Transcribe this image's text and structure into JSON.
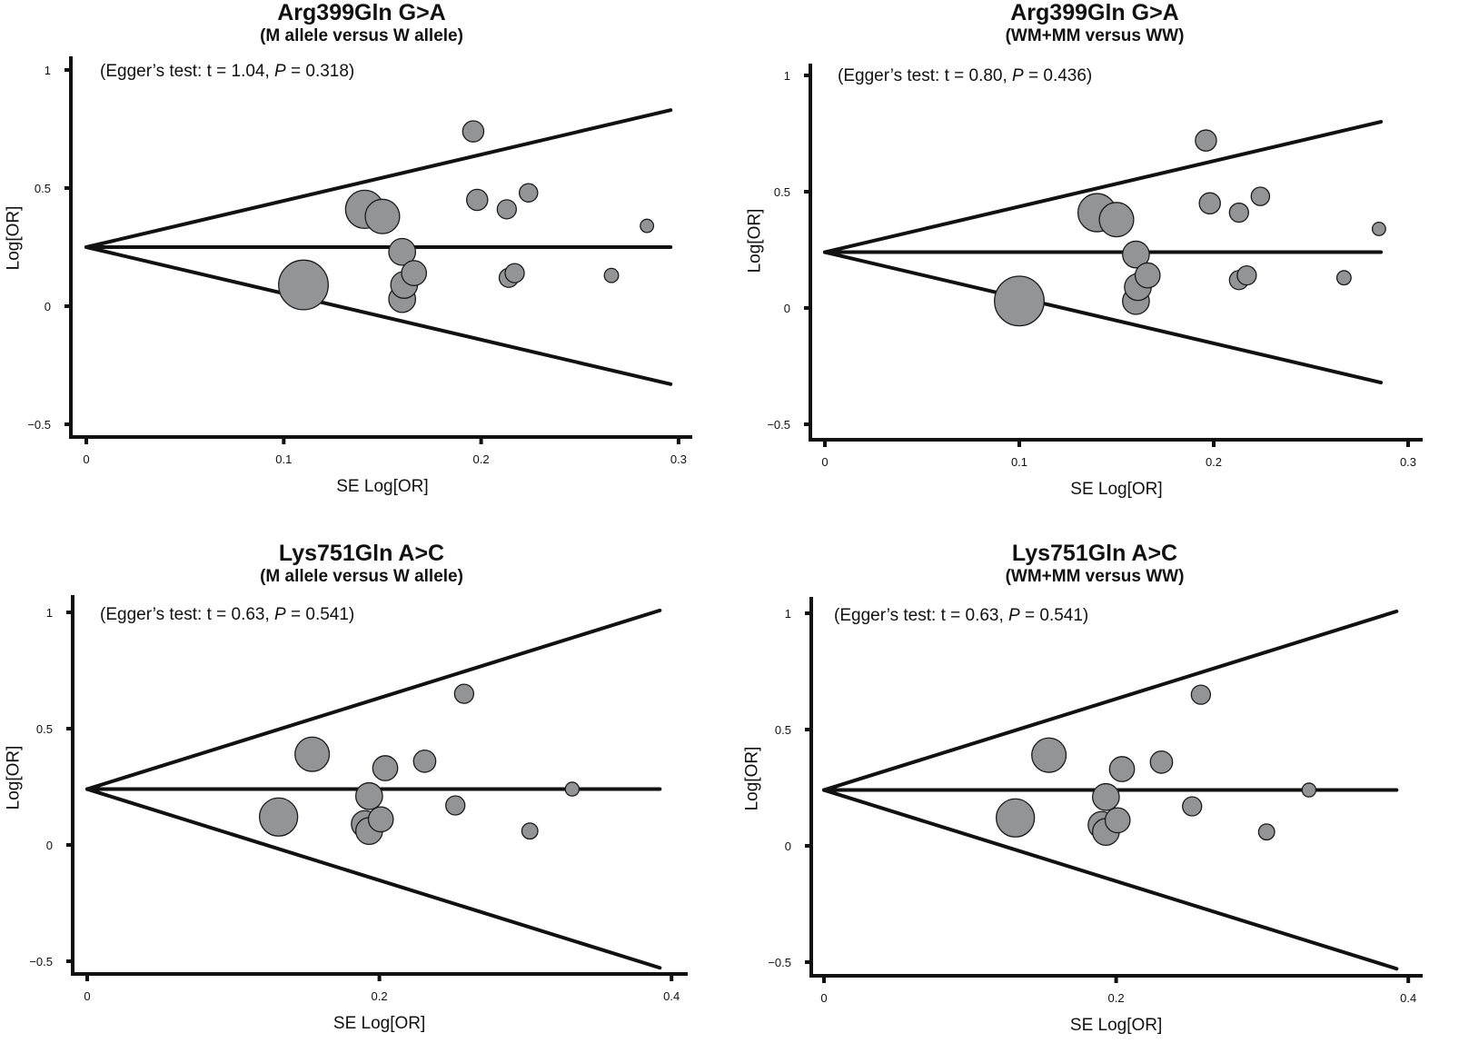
{
  "figure": {
    "colors": {
      "point_fill": "#939496",
      "point_stroke": "#1a1a1a",
      "line": "#111111"
    }
  },
  "chart_data": [
    {
      "type": "scatter",
      "subtype": "funnel-plot",
      "title": "Arg399Gln G>A",
      "subtitle": "(M allele versus W allele)",
      "annotation": {
        "prefix": "(Egger’s test: t = 1.04, ",
        "p_label": "P",
        "suffix": " = 0.318)"
      },
      "xlabel": "SE Log[OR]",
      "ylabel": "Log[OR]",
      "xlim": [
        0,
        0.3
      ],
      "ylim": [
        -0.5,
        1
      ],
      "xticks": [
        0,
        0.1,
        0.2,
        0.3
      ],
      "xtick_labels": [
        "0",
        "0.1",
        "0.2",
        "0.3"
      ],
      "yticks": [
        -0.5,
        0,
        0.5,
        1
      ],
      "ytick_labels": [
        "−0.5",
        "0",
        "0.5",
        "1"
      ],
      "pooled_log_or": 0.25,
      "funnel_se_max": 0.296,
      "points": [
        {
          "se": 0.196,
          "log_or": 0.74,
          "weight": 0.55
        },
        {
          "se": 0.141,
          "log_or": 0.41,
          "weight": 1.0
        },
        {
          "se": 0.15,
          "log_or": 0.38,
          "weight": 0.9
        },
        {
          "se": 0.198,
          "log_or": 0.45,
          "weight": 0.55
        },
        {
          "se": 0.213,
          "log_or": 0.41,
          "weight": 0.5
        },
        {
          "se": 0.224,
          "log_or": 0.48,
          "weight": 0.48
        },
        {
          "se": 0.284,
          "log_or": 0.34,
          "weight": 0.35
        },
        {
          "se": 0.16,
          "log_or": 0.23,
          "weight": 0.7
        },
        {
          "se": 0.11,
          "log_or": 0.09,
          "weight": 1.3
        },
        {
          "se": 0.16,
          "log_or": 0.03,
          "weight": 0.7
        },
        {
          "se": 0.161,
          "log_or": 0.09,
          "weight": 0.7
        },
        {
          "se": 0.166,
          "log_or": 0.14,
          "weight": 0.65
        },
        {
          "se": 0.214,
          "log_or": 0.12,
          "weight": 0.5
        },
        {
          "se": 0.217,
          "log_or": 0.14,
          "weight": 0.5
        },
        {
          "se": 0.266,
          "log_or": 0.13,
          "weight": 0.37
        }
      ]
    },
    {
      "type": "scatter",
      "subtype": "funnel-plot",
      "title": "Arg399Gln G>A",
      "subtitle": "(WM+MM versus WW)",
      "annotation": {
        "prefix": "(Egger’s test: t = 0.80, ",
        "p_label": "P",
        "suffix": " = 0.436)"
      },
      "xlabel": "SE Log[OR]",
      "ylabel": "Log[OR]",
      "xlim": [
        0,
        0.3
      ],
      "ylim": [
        -0.5,
        1
      ],
      "xticks": [
        0,
        0.1,
        0.2,
        0.3
      ],
      "xtick_labels": [
        "0",
        "0.1",
        "0.2",
        "0.3"
      ],
      "yticks": [
        -0.5,
        0,
        0.5,
        1
      ],
      "ytick_labels": [
        "−0.5",
        "0",
        "0.5",
        "1"
      ],
      "pooled_log_or": 0.24,
      "funnel_se_max": 0.286,
      "points": [
        {
          "se": 0.196,
          "log_or": 0.72,
          "weight": 0.55
        },
        {
          "se": 0.14,
          "log_or": 0.41,
          "weight": 1.0
        },
        {
          "se": 0.15,
          "log_or": 0.38,
          "weight": 0.9
        },
        {
          "se": 0.198,
          "log_or": 0.45,
          "weight": 0.55
        },
        {
          "se": 0.213,
          "log_or": 0.41,
          "weight": 0.5
        },
        {
          "se": 0.224,
          "log_or": 0.48,
          "weight": 0.48
        },
        {
          "se": 0.285,
          "log_or": 0.34,
          "weight": 0.35
        },
        {
          "se": 0.16,
          "log_or": 0.23,
          "weight": 0.7
        },
        {
          "se": 0.1,
          "log_or": 0.03,
          "weight": 1.3
        },
        {
          "se": 0.16,
          "log_or": 0.03,
          "weight": 0.7
        },
        {
          "se": 0.161,
          "log_or": 0.09,
          "weight": 0.7
        },
        {
          "se": 0.166,
          "log_or": 0.14,
          "weight": 0.65
        },
        {
          "se": 0.213,
          "log_or": 0.12,
          "weight": 0.5
        },
        {
          "se": 0.217,
          "log_or": 0.14,
          "weight": 0.5
        },
        {
          "se": 0.267,
          "log_or": 0.13,
          "weight": 0.37
        }
      ]
    },
    {
      "type": "scatter",
      "subtype": "funnel-plot",
      "title": "Lys751Gln A>C",
      "subtitle": "(M allele versus W allele)",
      "annotation": {
        "prefix": "(Egger’s test: t = 0.63, ",
        "p_label": "P",
        "suffix": " = 0.541)"
      },
      "xlabel": "SE Log[OR]",
      "ylabel": "Log[OR]",
      "xlim": [
        0,
        0.4
      ],
      "ylim": [
        -0.5,
        1
      ],
      "xticks": [
        0,
        0.2,
        0.4
      ],
      "xtick_labels": [
        "0",
        "0.2",
        "0.4"
      ],
      "yticks": [
        -0.5,
        0,
        0.5,
        1
      ],
      "ytick_labels": [
        "−0.5",
        "0",
        "0.5",
        "1"
      ],
      "pooled_log_or": 0.24,
      "funnel_se_max": 0.392,
      "points": [
        {
          "se": 0.258,
          "log_or": 0.65,
          "weight": 0.5
        },
        {
          "se": 0.154,
          "log_or": 0.39,
          "weight": 0.9
        },
        {
          "se": 0.204,
          "log_or": 0.33,
          "weight": 0.65
        },
        {
          "se": 0.231,
          "log_or": 0.36,
          "weight": 0.58
        },
        {
          "se": 0.193,
          "log_or": 0.21,
          "weight": 0.7
        },
        {
          "se": 0.131,
          "log_or": 0.12,
          "weight": 1.0
        },
        {
          "se": 0.19,
          "log_or": 0.09,
          "weight": 0.7
        },
        {
          "se": 0.193,
          "log_or": 0.06,
          "weight": 0.7
        },
        {
          "se": 0.201,
          "log_or": 0.11,
          "weight": 0.65
        },
        {
          "se": 0.252,
          "log_or": 0.17,
          "weight": 0.5
        },
        {
          "se": 0.303,
          "log_or": 0.06,
          "weight": 0.42
        },
        {
          "se": 0.332,
          "log_or": 0.24,
          "weight": 0.36
        }
      ]
    },
    {
      "type": "scatter",
      "subtype": "funnel-plot",
      "title": "Lys751Gln A>C",
      "subtitle": "(WM+MM versus WW)",
      "annotation": {
        "prefix": "(Egger’s test: t = 0.63, ",
        "p_label": "P",
        "suffix": " = 0.541)"
      },
      "xlabel": "SE Log[OR]",
      "ylabel": "Log[OR]",
      "xlim": [
        0,
        0.4
      ],
      "ylim": [
        -0.5,
        1
      ],
      "xticks": [
        0,
        0.2,
        0.4
      ],
      "xtick_labels": [
        "0",
        "0.2",
        "0.4"
      ],
      "yticks": [
        -0.5,
        0,
        0.5,
        1
      ],
      "ytick_labels": [
        "−0.5",
        "0",
        "0.5",
        "1"
      ],
      "pooled_log_or": 0.24,
      "funnel_se_max": 0.392,
      "points": [
        {
          "se": 0.258,
          "log_or": 0.65,
          "weight": 0.5
        },
        {
          "se": 0.154,
          "log_or": 0.39,
          "weight": 0.9
        },
        {
          "se": 0.204,
          "log_or": 0.33,
          "weight": 0.65
        },
        {
          "se": 0.231,
          "log_or": 0.36,
          "weight": 0.58
        },
        {
          "se": 0.193,
          "log_or": 0.21,
          "weight": 0.7
        },
        {
          "se": 0.131,
          "log_or": 0.12,
          "weight": 1.0
        },
        {
          "se": 0.19,
          "log_or": 0.09,
          "weight": 0.7
        },
        {
          "se": 0.193,
          "log_or": 0.06,
          "weight": 0.7
        },
        {
          "se": 0.201,
          "log_or": 0.11,
          "weight": 0.65
        },
        {
          "se": 0.252,
          "log_or": 0.17,
          "weight": 0.5
        },
        {
          "se": 0.303,
          "log_or": 0.06,
          "weight": 0.42
        },
        {
          "se": 0.332,
          "log_or": 0.24,
          "weight": 0.36
        }
      ]
    }
  ]
}
